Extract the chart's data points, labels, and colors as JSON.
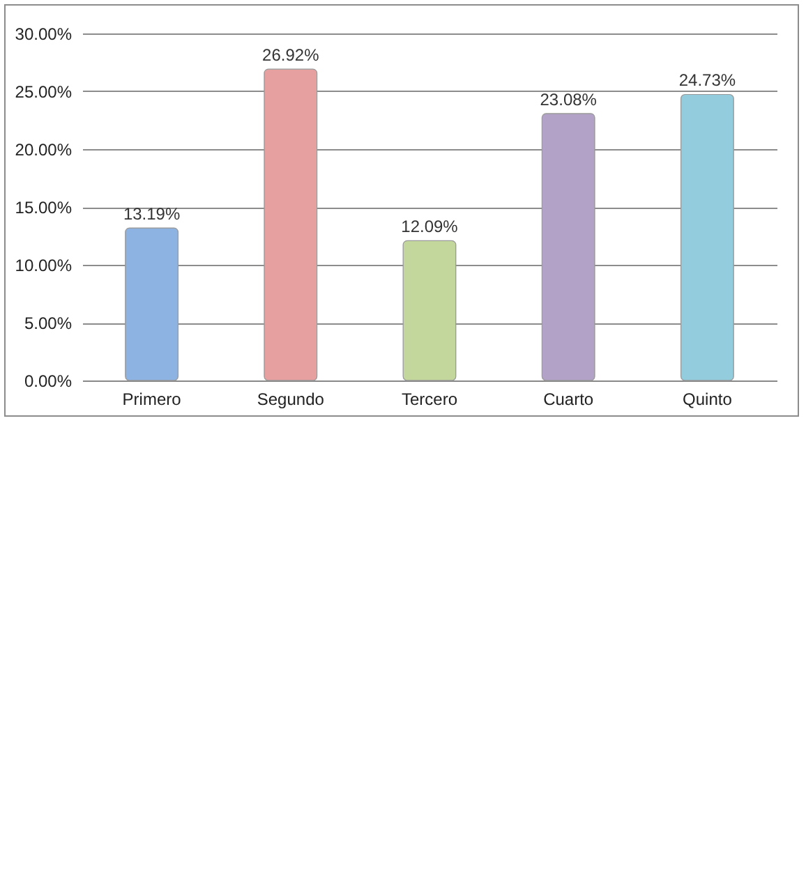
{
  "chart_data": {
    "type": "bar",
    "categories": [
      "Primero",
      "Segundo",
      "Tercero",
      "Cuarto",
      "Quinto"
    ],
    "values": [
      13.19,
      26.92,
      12.09,
      23.08,
      24.73
    ],
    "colors": [
      "#8db3e2",
      "#e6a0a0",
      "#c3d69b",
      "#b3a2c7",
      "#93cddd"
    ],
    "value_labels": [
      "13.19%",
      "26.92%",
      "12.09%",
      "23.08%",
      "24.73%"
    ],
    "ylim": [
      0,
      30
    ],
    "yticks": [
      {
        "value": 0,
        "label": "0.00%"
      },
      {
        "value": 5,
        "label": "5.00%"
      },
      {
        "value": 10,
        "label": "10.00%"
      },
      {
        "value": 15,
        "label": "15.00%"
      },
      {
        "value": 20,
        "label": "20.00%"
      },
      {
        "value": 25,
        "label": "25.00%"
      },
      {
        "value": 30,
        "label": "30.00%"
      }
    ],
    "grid": "y"
  }
}
